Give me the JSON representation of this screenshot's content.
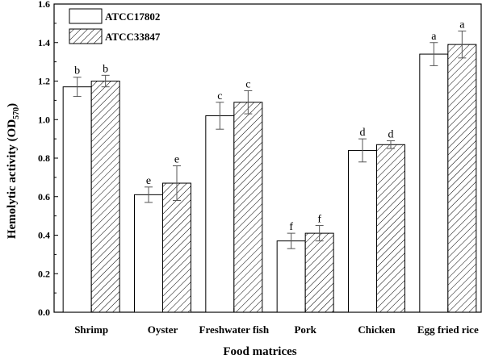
{
  "chart_data": {
    "type": "bar",
    "xlabel": "Food matrices",
    "ylabel_main": "Hemolytic activity (OD",
    "ylabel_sub": "570",
    "ylabel_close": ")",
    "ylim": [
      0.0,
      1.6
    ],
    "yticks": [
      "0.0",
      "0.2",
      "0.4",
      "0.6",
      "0.8",
      "1.0",
      "1.2",
      "1.4",
      "1.6"
    ],
    "grid": false,
    "legend_position": "top-left",
    "categories": [
      "Shrimp",
      "Oyster",
      "Freshwater fish",
      "Pork",
      "Chicken",
      "Egg fried rice"
    ],
    "series": [
      {
        "name": "ATCC17802",
        "pattern": "open",
        "values": [
          1.17,
          0.61,
          1.02,
          0.37,
          0.84,
          1.34
        ],
        "errors": [
          0.05,
          0.04,
          0.07,
          0.04,
          0.06,
          0.06
        ],
        "letters": [
          "b",
          "e",
          "c",
          "f",
          "d",
          "a"
        ]
      },
      {
        "name": "ATCC33847",
        "pattern": "hatched",
        "values": [
          1.2,
          0.67,
          1.09,
          0.41,
          0.87,
          1.39
        ],
        "errors": [
          0.03,
          0.09,
          0.06,
          0.04,
          0.02,
          0.07
        ],
        "letters": [
          "b",
          "e",
          "c",
          "f",
          "d",
          "a"
        ]
      }
    ]
  }
}
